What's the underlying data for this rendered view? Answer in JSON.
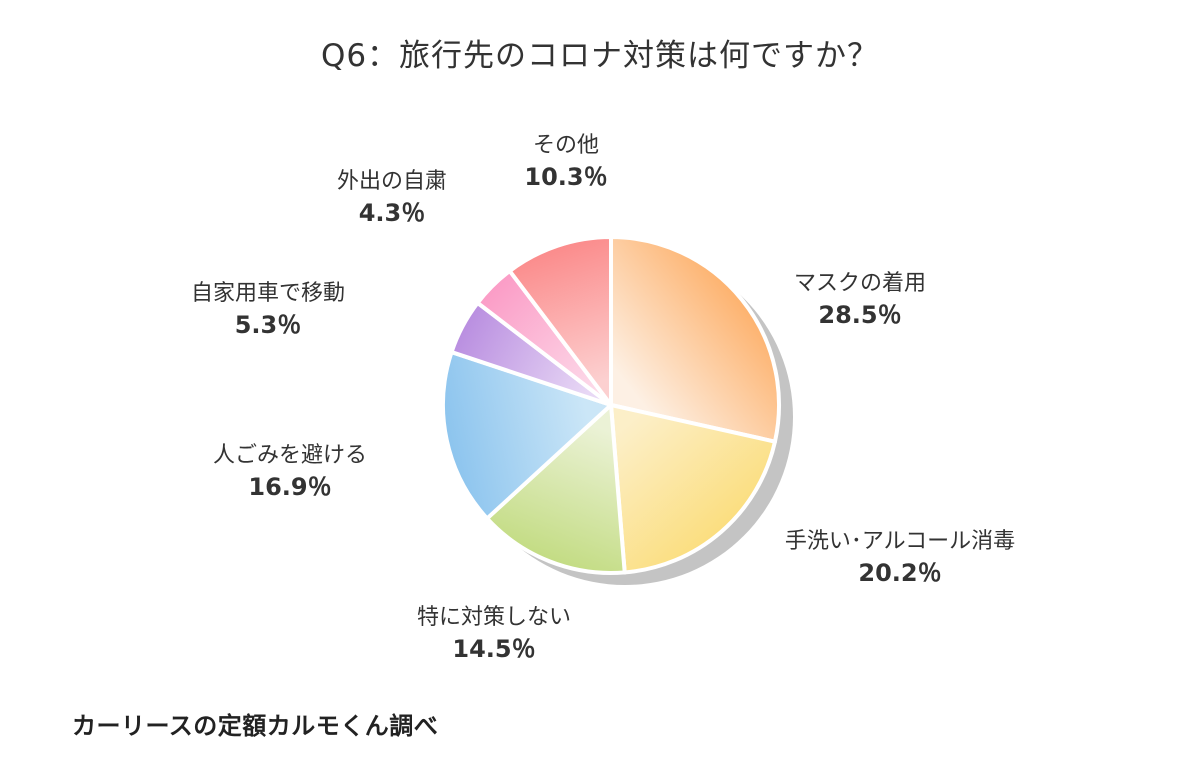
{
  "chart_data": {
    "type": "pie",
    "title": "Q6：旅行先のコロナ対策は何ですか？",
    "slices": [
      {
        "label": "マスクの着用",
        "value": 28.5,
        "value_label": "28.5％",
        "color": "#fdb26e",
        "color_light": "#fdf0e4"
      },
      {
        "label": "手洗い･アルコール消毒",
        "value": 20.2,
        "value_label": "20.2％",
        "color": "#fbde7f",
        "color_light": "#fcefc8"
      },
      {
        "label": "特に対策しない",
        "value": 14.5,
        "value_label": "14.5％",
        "color": "#c3dc83",
        "color_light": "#ebf2d6"
      },
      {
        "label": "人ごみを避ける",
        "value": 16.9,
        "value_label": "16.9％",
        "color": "#8cc4ee",
        "color_light": "#cbe6f7"
      },
      {
        "label": "自家用車で移動",
        "value": 5.3,
        "value_label": "5.3％",
        "color": "#b98ee0",
        "color_light": "#e8d8f5"
      },
      {
        "label": "外出の自粛",
        "value": 4.3,
        "value_label": "4.3％",
        "color": "#fb9cc6",
        "color_light": "#fcd8e8"
      },
      {
        "label": "その他",
        "value": 10.3,
        "value_label": "10.3％",
        "color": "#fb8b8b",
        "color_light": "#fcd0d0"
      }
    ],
    "start_angle": "12 o'clock",
    "direction": "clockwise"
  },
  "source_note": "カーリースの定額カルモくん調べ"
}
